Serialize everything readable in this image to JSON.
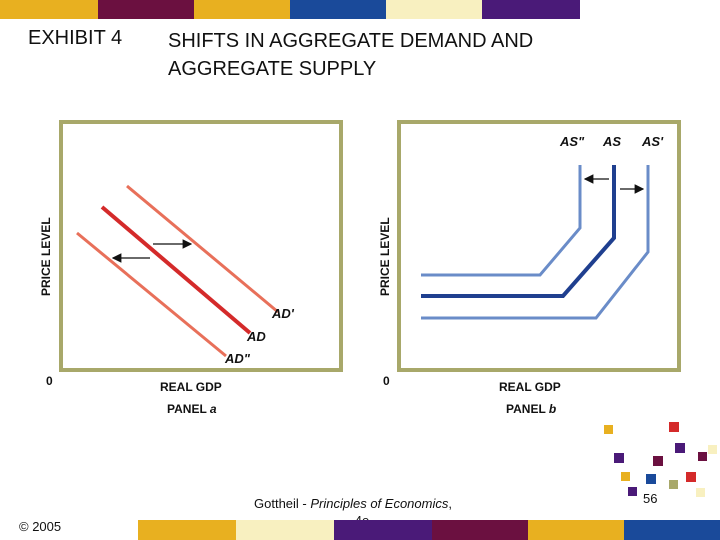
{
  "header": {
    "exhibit_label": "EXHIBIT 4",
    "title_line1": "SHIFTS IN AGGREGATE DEMAND AND",
    "title_line2": "AGGREGATE SUPPLY"
  },
  "panel_a": {
    "ylabel": "PRICE LEVEL",
    "xlabel": "REAL GDP",
    "origin": "0",
    "panel_label": "PANEL",
    "panel_letter": "a",
    "curves": {
      "ad_prime": "AD'",
      "ad": "AD",
      "ad_double_prime": "AD\""
    }
  },
  "panel_b": {
    "ylabel": "PRICE LEVEL",
    "xlabel": "REAL GDP",
    "origin": "0",
    "panel_label": "PANEL",
    "panel_letter": "b",
    "curves": {
      "as_double_prime": "AS\"",
      "as": "AS",
      "as_prime": "AS'"
    }
  },
  "footer": {
    "copyright": "© 2005",
    "citation_author": "Gottheil - ",
    "citation_book": "Principles of Economics",
    "citation_edition_sep": ",",
    "citation_edition": "4e",
    "page_number": "56"
  },
  "colors": {
    "frame": "#a8a86a",
    "ad_light": "#e8705a",
    "ad_main": "#d42a2a",
    "as_light": "#6a8cc8",
    "as_main": "#1f3f8f",
    "bar_maroon": "#6b1040",
    "bar_gold": "#e8b020",
    "bar_blue": "#1a4a9a",
    "bar_cream": "#f8f0c0",
    "bar_purple": "#4a1a78"
  }
}
